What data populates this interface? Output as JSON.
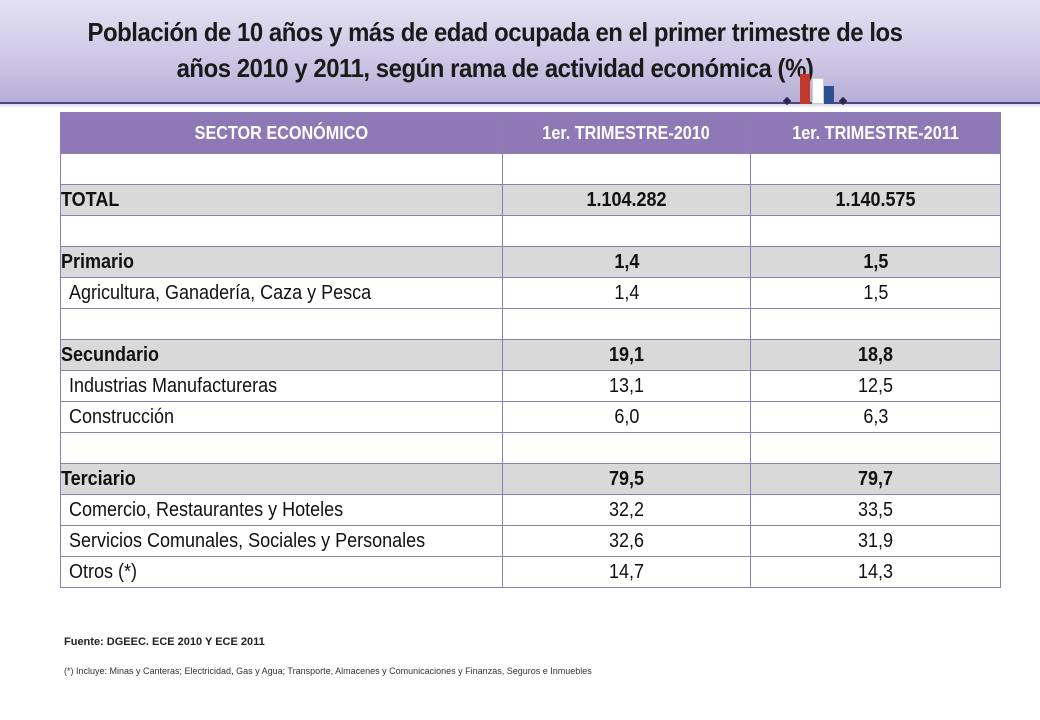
{
  "title": {
    "line1": "Población de 10 años y más de edad ocupada  en el primer trimestre de los",
    "line2": "años 2010 y 2011, según rama de actividad económica (%)"
  },
  "colors": {
    "header_bg": "#8e79b6",
    "bold_row_bg": "#d9d9d9",
    "bar_red": "#c0392b",
    "bar_blue": "#2c4f8f"
  },
  "table": {
    "headers": [
      "SECTOR ECONÓMICO",
      "1er. TRIMESTRE-2010",
      "1er. TRIMESTRE-2011"
    ],
    "rows": [
      {
        "label": "",
        "v2010": "",
        "v2011": ""
      },
      {
        "label": "TOTAL",
        "v2010": "1.104.282",
        "v2011": "1.140.575"
      },
      {
        "label": "",
        "v2010": "",
        "v2011": ""
      },
      {
        "label": "Primario",
        "v2010": "1,4",
        "v2011": "1,5"
      },
      {
        "label": "Agricultura, Ganadería, Caza y Pesca",
        "v2010": "1,4",
        "v2011": "1,5"
      },
      {
        "label": "",
        "v2010": "",
        "v2011": ""
      },
      {
        "label": "Secundario",
        "v2010": "19,1",
        "v2011": "18,8"
      },
      {
        "label": "Industrias Manufactureras",
        "v2010": "13,1",
        "v2011": "12,5"
      },
      {
        "label": "Construcción",
        "v2010": "6,0",
        "v2011": "6,3"
      },
      {
        "label": "",
        "v2010": "",
        "v2011": ""
      },
      {
        "label": "Terciario",
        "v2010": "79,5",
        "v2011": "79,7"
      },
      {
        "label": "Comercio, Restaurantes y Hoteles",
        "v2010": "32,2",
        "v2011": "33,5"
      },
      {
        "label": "Servicios Comunales, Sociales y Personales",
        "v2010": "32,6",
        "v2011": "31,9"
      },
      {
        "label": "Otros (*)",
        "v2010": "14,7",
        "v2011": "14,3"
      }
    ]
  },
  "source": "Fuente: DGEEC. ECE 2010 Y ECE 2011",
  "footnote": "(*) Incluye:  Minas y Canteras;  Electricidad,  Gas y Agua; Transporte, Almacenes y Comunicaciones  y Finanzas, Seguros e Inmuebles"
}
